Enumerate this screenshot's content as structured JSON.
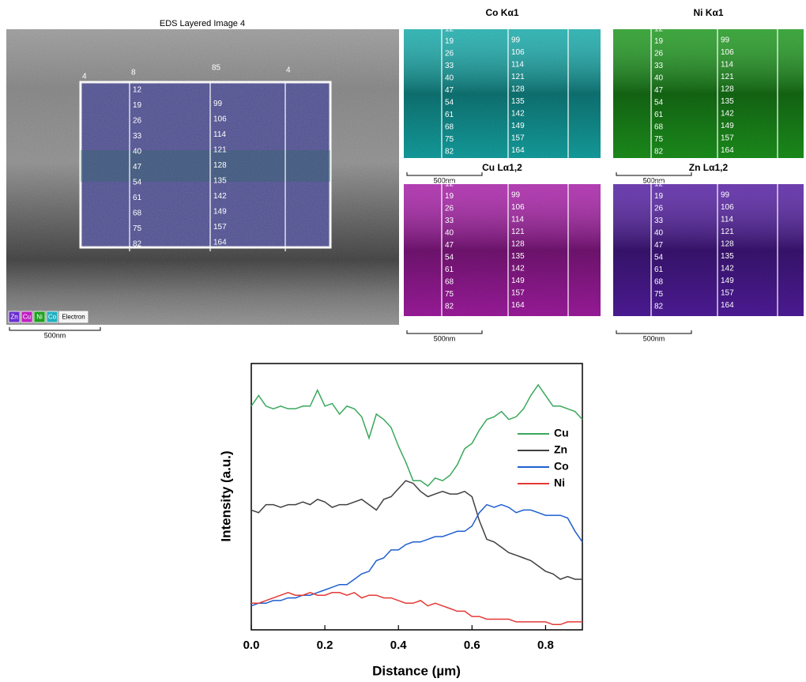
{
  "figure": {
    "eds_title": "EDS Layered Image 4",
    "maps": [
      {
        "title": "Co Kα1",
        "color": "#17b8b8"
      },
      {
        "title": "Ni Kα1",
        "color": "#1fa51f"
      },
      {
        "title": "Cu Lα1,2",
        "color": "#b51fb5"
      },
      {
        "title": "Zn Lα1,2",
        "color": "#5a1fb0"
      }
    ],
    "scale_bar": "500nm",
    "layer_legend": [
      "Zn",
      "Cu",
      "Ni",
      "Co",
      "Electron"
    ],
    "line_top_labels": [
      "4",
      "8",
      "85",
      "4"
    ],
    "line_markers_left": [
      12,
      19,
      26,
      33,
      40,
      47,
      54,
      61,
      68,
      75,
      82
    ],
    "line_markers_right": [
      99,
      106,
      114,
      121,
      128,
      135,
      142,
      149,
      157,
      164
    ]
  },
  "chart_data": {
    "type": "line",
    "xlabel": "Distance (µm)",
    "ylabel": "Intensity (a.u.)",
    "xlim": [
      0,
      0.9
    ],
    "xticks": [
      {
        "value": 0,
        "label": "0.0"
      },
      0.2,
      0.4,
      0.6,
      0.8
    ],
    "ylim": [
      0,
      100
    ],
    "legend": "upper right",
    "x": [
      0,
      0.02,
      0.04,
      0.06,
      0.08,
      0.1,
      0.12,
      0.14,
      0.16,
      0.18,
      0.2,
      0.22,
      0.24,
      0.26,
      0.28,
      0.3,
      0.32,
      0.34,
      0.36,
      0.38,
      0.4,
      0.42,
      0.44,
      0.46,
      0.48,
      0.5,
      0.52,
      0.54,
      0.56,
      0.58,
      0.6,
      0.62,
      0.64,
      0.66,
      0.68,
      0.7,
      0.72,
      0.74,
      0.76,
      0.78,
      0.8,
      0.82,
      0.84,
      0.86,
      0.88,
      0.9
    ],
    "series": [
      {
        "name": "Cu",
        "color": "#3aa85c",
        "values": [
          84,
          88,
          84,
          83,
          84,
          83,
          83,
          84,
          84,
          90,
          84,
          85,
          81,
          84,
          83,
          80,
          72,
          81,
          79,
          76,
          69,
          63,
          56,
          56,
          54,
          57,
          56,
          58,
          62,
          68,
          70,
          75,
          79,
          80,
          82,
          79,
          80,
          83,
          88,
          92,
          88,
          84,
          84,
          83,
          82,
          79
        ]
      },
      {
        "name": "Zn",
        "color": "#404040",
        "values": [
          45,
          44,
          47,
          47,
          46,
          47,
          47,
          48,
          47,
          49,
          48,
          46,
          47,
          47,
          48,
          49,
          47,
          45,
          49,
          50,
          53,
          56,
          55,
          52,
          50,
          51,
          52,
          51,
          51,
          52,
          50,
          41,
          34,
          33,
          31,
          29,
          28,
          27,
          26,
          24,
          22,
          21,
          19,
          20,
          19,
          19
        ]
      },
      {
        "name": "Co",
        "color": "#1f5fcf",
        "values": [
          9,
          10,
          10,
          11,
          11,
          12,
          12,
          13,
          13,
          14,
          15,
          16,
          17,
          17,
          19,
          21,
          22,
          26,
          27,
          30,
          30,
          32,
          33,
          33,
          34,
          35,
          35,
          36,
          37,
          37,
          39,
          44,
          47,
          46,
          47,
          46,
          44,
          45,
          45,
          44,
          43,
          43,
          43,
          42,
          37,
          33
        ]
      },
      {
        "name": "Ni",
        "color": "#e53935",
        "values": [
          10,
          10,
          11,
          12,
          13,
          14,
          13,
          13,
          14,
          13,
          13,
          14,
          14,
          13,
          14,
          12,
          13,
          13,
          12,
          12,
          11,
          10,
          10,
          11,
          9,
          10,
          9,
          8,
          7,
          7,
          5,
          5,
          4,
          4,
          4,
          4,
          3,
          3,
          3,
          3,
          3,
          2,
          2,
          3,
          3,
          3
        ]
      }
    ]
  }
}
